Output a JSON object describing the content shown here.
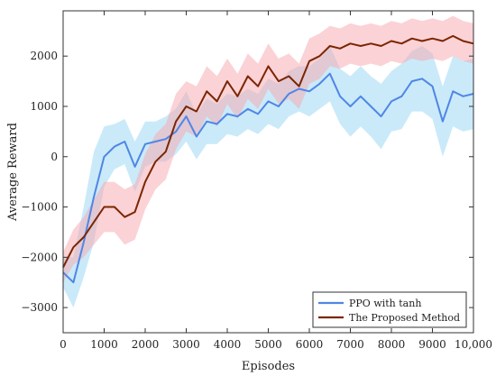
{
  "chart_data": {
    "type": "line",
    "title": "",
    "xlabel": "Episodes",
    "ylabel": "Average Reward",
    "xlim": [
      0,
      10000
    ],
    "ylim": [
      -3500,
      2900
    ],
    "x_ticks": [
      0,
      1000,
      2000,
      3000,
      4000,
      5000,
      6000,
      7000,
      8000,
      9000,
      10000
    ],
    "x_tick_labels": [
      "0",
      "1000",
      "2000",
      "3000",
      "4000",
      "5000",
      "6000",
      "7000",
      "8000",
      "9000",
      "10,000"
    ],
    "y_ticks": [
      -3000,
      -2000,
      -1000,
      0,
      1000,
      2000
    ],
    "y_tick_labels": [
      "−3000",
      "−2000",
      "−1000",
      "0",
      "1000",
      "2000"
    ],
    "grid": false,
    "legend_position": "bottom-right",
    "shaded_bands": true,
    "series": [
      {
        "name": "PPO with tanh",
        "color": "#4f86e6",
        "band_color": "#9fd8f4",
        "x": [
          0,
          250,
          500,
          750,
          1000,
          1250,
          1500,
          1750,
          2000,
          2250,
          2500,
          2750,
          3000,
          3250,
          3500,
          3750,
          4000,
          4250,
          4500,
          4750,
          5000,
          5250,
          5500,
          5750,
          6000,
          6250,
          6500,
          6750,
          7000,
          7250,
          7500,
          7750,
          8000,
          8250,
          8500,
          8750,
          9000,
          9250,
          9500,
          9750,
          10000
        ],
        "values": [
          -2300,
          -2500,
          -1700,
          -800,
          0,
          200,
          300,
          -200,
          250,
          300,
          350,
          500,
          800,
          400,
          700,
          650,
          850,
          800,
          950,
          850,
          1100,
          1000,
          1250,
          1350,
          1300,
          1450,
          1650,
          1200,
          1000,
          1200,
          1000,
          800,
          1100,
          1200,
          1500,
          1550,
          1400,
          700,
          1300,
          1200,
          1250
        ],
        "spread": [
          300,
          500,
          700,
          900,
          600,
          450,
          450,
          500,
          450,
          400,
          450,
          450,
          500,
          450,
          450,
          400,
          400,
          400,
          400,
          400,
          450,
          450,
          450,
          450,
          500,
          500,
          550,
          550,
          600,
          600,
          600,
          650,
          600,
          650,
          600,
          650,
          650,
          700,
          700,
          700,
          700
        ]
      },
      {
        "name": "The Proposed Method",
        "color": "#7a2600",
        "band_color": "#f8a6ad",
        "x": [
          0,
          250,
          500,
          750,
          1000,
          1250,
          1500,
          1750,
          2000,
          2250,
          2500,
          2750,
          3000,
          3250,
          3500,
          3750,
          4000,
          4250,
          4500,
          4750,
          5000,
          5250,
          5500,
          5750,
          6000,
          6250,
          6500,
          6750,
          7000,
          7250,
          7500,
          7750,
          8000,
          8250,
          8500,
          8750,
          9000,
          9250,
          9500,
          9750,
          10000
        ],
        "values": [
          -2200,
          -1800,
          -1600,
          -1300,
          -1000,
          -1000,
          -1200,
          -1100,
          -500,
          -100,
          100,
          700,
          1000,
          900,
          1300,
          1100,
          1500,
          1200,
          1600,
          1400,
          1800,
          1500,
          1600,
          1400,
          1900,
          2000,
          2200,
          2150,
          2250,
          2200,
          2250,
          2200,
          2300,
          2250,
          2350,
          2300,
          2350,
          2300,
          2400,
          2300,
          2250
        ],
        "spread": [
          300,
          350,
          400,
          450,
          500,
          500,
          550,
          550,
          550,
          550,
          550,
          550,
          500,
          500,
          500,
          500,
          450,
          450,
          450,
          450,
          450,
          450,
          450,
          450,
          450,
          450,
          400,
          400,
          400,
          400,
          400,
          400,
          400,
          400,
          400,
          400,
          400,
          400,
          400,
          400,
          400
        ]
      }
    ]
  }
}
